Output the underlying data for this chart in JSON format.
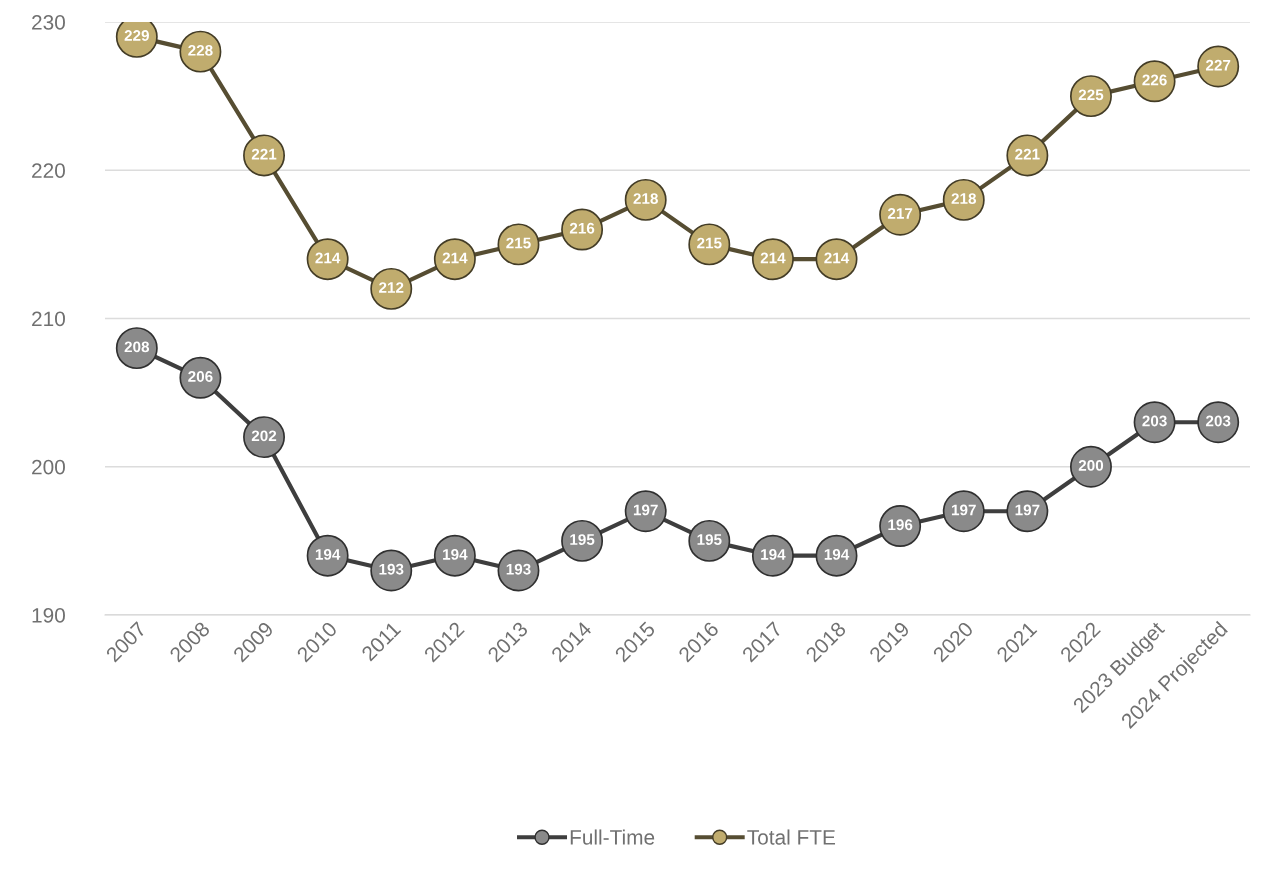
{
  "chart_data": {
    "type": "line",
    "categories": [
      "2007",
      "2008",
      "2009",
      "2010",
      "2011",
      "2012",
      "2013",
      "2014",
      "2015",
      "2016",
      "2017",
      "2018",
      "2019",
      "2020",
      "2021",
      "2022",
      "2023 Budget",
      "2024 Projected"
    ],
    "series": [
      {
        "name": "Full-Time",
        "color": "#8a8a8a",
        "values": [
          208,
          206,
          202,
          194,
          193,
          194,
          193,
          195,
          197,
          195,
          194,
          194,
          196,
          197,
          197,
          200,
          203,
          203
        ]
      },
      {
        "name": "Total FTE",
        "color": "#c0ac6e",
        "values": [
          229,
          228,
          221,
          214,
          212,
          214,
          215,
          216,
          218,
          215,
          214,
          214,
          217,
          218,
          221,
          225,
          226,
          227
        ]
      }
    ],
    "ylim": [
      190,
      230
    ],
    "yticks": [
      190,
      200,
      210,
      220,
      230
    ],
    "grid": "y",
    "legend": "bottom",
    "marker": "circle",
    "line_style": "solid",
    "data_labels": true
  }
}
